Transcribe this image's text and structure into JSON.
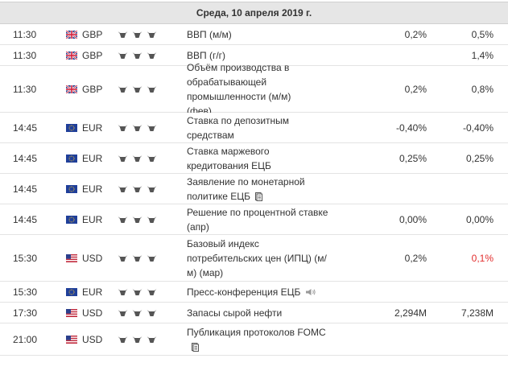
{
  "header": {
    "date": "Среда, 10 апреля 2019 г."
  },
  "colors": {
    "red": "#e22d2d",
    "header_bg": "#e6e6e6"
  },
  "rows": [
    {
      "time": "11:30",
      "currency": "GBP",
      "flag": "uk-flag-icon",
      "event": "ВВП (м/м)",
      "actual": "0,2%",
      "forecast": "0,5%"
    },
    {
      "time": "11:30",
      "currency": "GBP",
      "flag": "uk-flag-icon",
      "event": "ВВП (г/г)",
      "actual": "",
      "forecast": "1,4%"
    },
    {
      "time": "11:30",
      "currency": "GBP",
      "flag": "uk-flag-icon",
      "event": "Объём производства в обрабатывающей промышленности (м/м) (фев)",
      "actual": "0,2%",
      "forecast": "0,8%"
    },
    {
      "time": "14:45",
      "currency": "EUR",
      "flag": "eu-flag-icon",
      "event": "Ставка по депозитным средствам",
      "actual": "-0,40%",
      "forecast": "-0,40%"
    },
    {
      "time": "14:45",
      "currency": "EUR",
      "flag": "eu-flag-icon",
      "event": "Ставка маржевого кредитования ЕЦБ",
      "actual": "0,25%",
      "forecast": "0,25%"
    },
    {
      "time": "14:45",
      "currency": "EUR",
      "flag": "eu-flag-icon",
      "event": "Заявление по монетарной политике ЕЦБ",
      "actual": "",
      "forecast": ""
    },
    {
      "time": "14:45",
      "currency": "EUR",
      "flag": "eu-flag-icon",
      "event": "Решение по процентной ставке (апр)",
      "actual": "0,00%",
      "forecast": "0,00%"
    },
    {
      "time": "15:30",
      "currency": "USD",
      "flag": "us-flag-icon",
      "event": "Базовый индекс потребительских цен (ИПЦ) (м/м) (мар)",
      "actual": "0,2%",
      "forecast": "0,1%"
    },
    {
      "time": "15:30",
      "currency": "EUR",
      "flag": "eu-flag-icon",
      "event": "Пресс-конференция ЕЦБ",
      "actual": "",
      "forecast": ""
    },
    {
      "time": "17:30",
      "currency": "USD",
      "flag": "us-flag-icon",
      "event": "Запасы сырой нефти",
      "actual": "2,294M",
      "forecast": "7,238M"
    },
    {
      "time": "21:00",
      "currency": "USD",
      "flag": "us-flag-icon",
      "event": "Публикация протоколов FOMC",
      "actual": "",
      "forecast": ""
    }
  ]
}
